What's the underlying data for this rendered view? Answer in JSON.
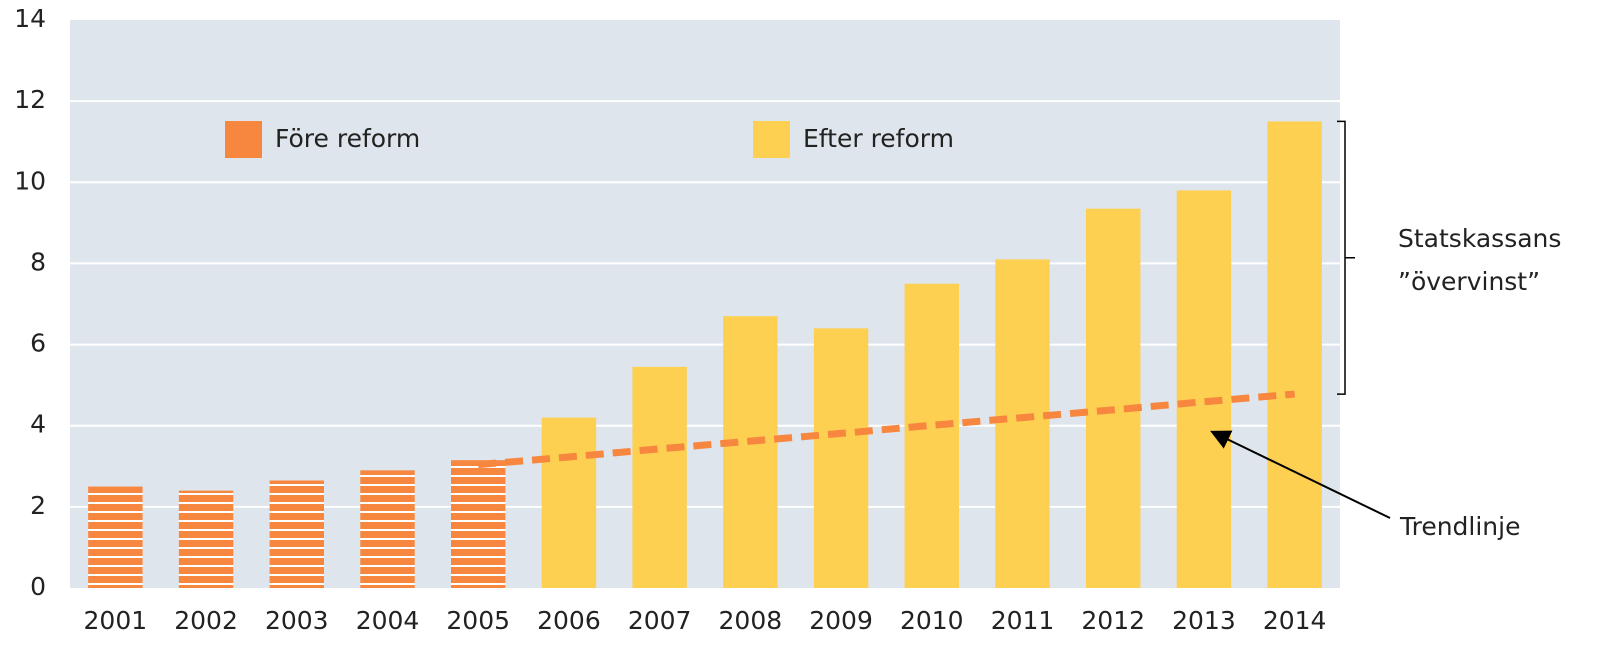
{
  "chart_data": {
    "type": "bar",
    "categories": [
      "2001",
      "2002",
      "2003",
      "2004",
      "2005",
      "2006",
      "2007",
      "2008",
      "2009",
      "2010",
      "2011",
      "2012",
      "2013",
      "2014"
    ],
    "series": [
      {
        "name": "Före reform",
        "color": "#f7863f",
        "striped": true,
        "values": [
          2.5,
          2.4,
          2.65,
          2.9,
          3.15,
          null,
          null,
          null,
          null,
          null,
          null,
          null,
          null,
          null
        ]
      },
      {
        "name": "Efter reform",
        "color": "#fdd052",
        "values": [
          null,
          null,
          null,
          null,
          null,
          4.2,
          5.45,
          6.7,
          6.4,
          7.5,
          8.1,
          9.35,
          9.8,
          11.5
        ]
      },
      {
        "name": "Trendlinje",
        "type": "line",
        "dashed": true,
        "color": "#f7863f",
        "values": [
          null,
          null,
          null,
          null,
          3.04,
          3.23,
          3.43,
          3.62,
          3.81,
          4.01,
          4.2,
          4.39,
          4.59,
          4.78
        ]
      }
    ],
    "annotations": [
      "Statskassans",
      "”övervinst”"
    ],
    "ylim": [
      0,
      14
    ],
    "yticks": [
      0,
      2,
      4,
      6,
      8,
      10,
      12,
      14
    ],
    "grid": true
  }
}
